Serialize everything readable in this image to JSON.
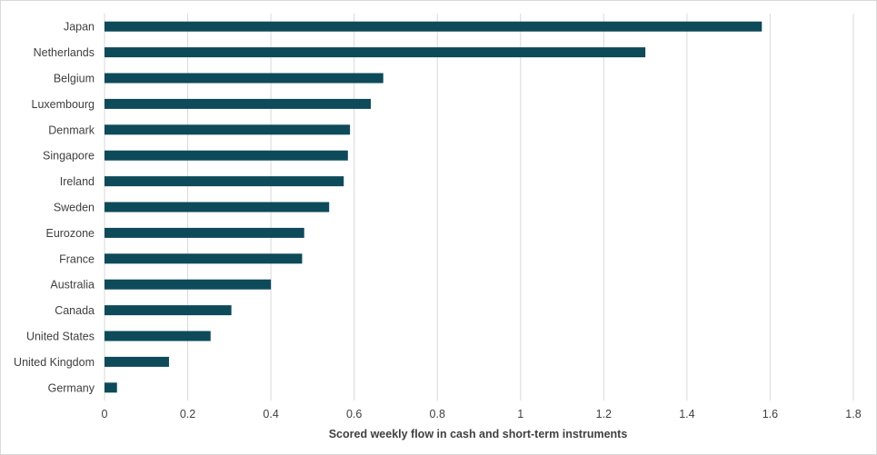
{
  "chart_data": {
    "type": "bar",
    "orientation": "horizontal",
    "categories": [
      "Japan",
      "Netherlands",
      "Belgium",
      "Luxembourg",
      "Denmark",
      "Singapore",
      "Ireland",
      "Sweden",
      "Eurozone",
      "France",
      "Australia",
      "Canada",
      "United States",
      "United Kingdom",
      "Germany"
    ],
    "values": [
      1.58,
      1.3,
      0.67,
      0.64,
      0.59,
      0.585,
      0.575,
      0.54,
      0.48,
      0.475,
      0.4,
      0.305,
      0.255,
      0.155,
      0.03
    ],
    "xlabel": "Scored weekly flow in cash and short-term instruments",
    "ylabel": "",
    "xlim": [
      0,
      1.8
    ],
    "xticks": [
      "0",
      "0.2",
      "0.4",
      "0.6",
      "0.8",
      "1",
      "1.2",
      "1.4",
      "1.6",
      "1.8"
    ],
    "grid": "vertical",
    "bar_color": "#0d4a5a",
    "grid_color": "#d9d9d9"
  }
}
